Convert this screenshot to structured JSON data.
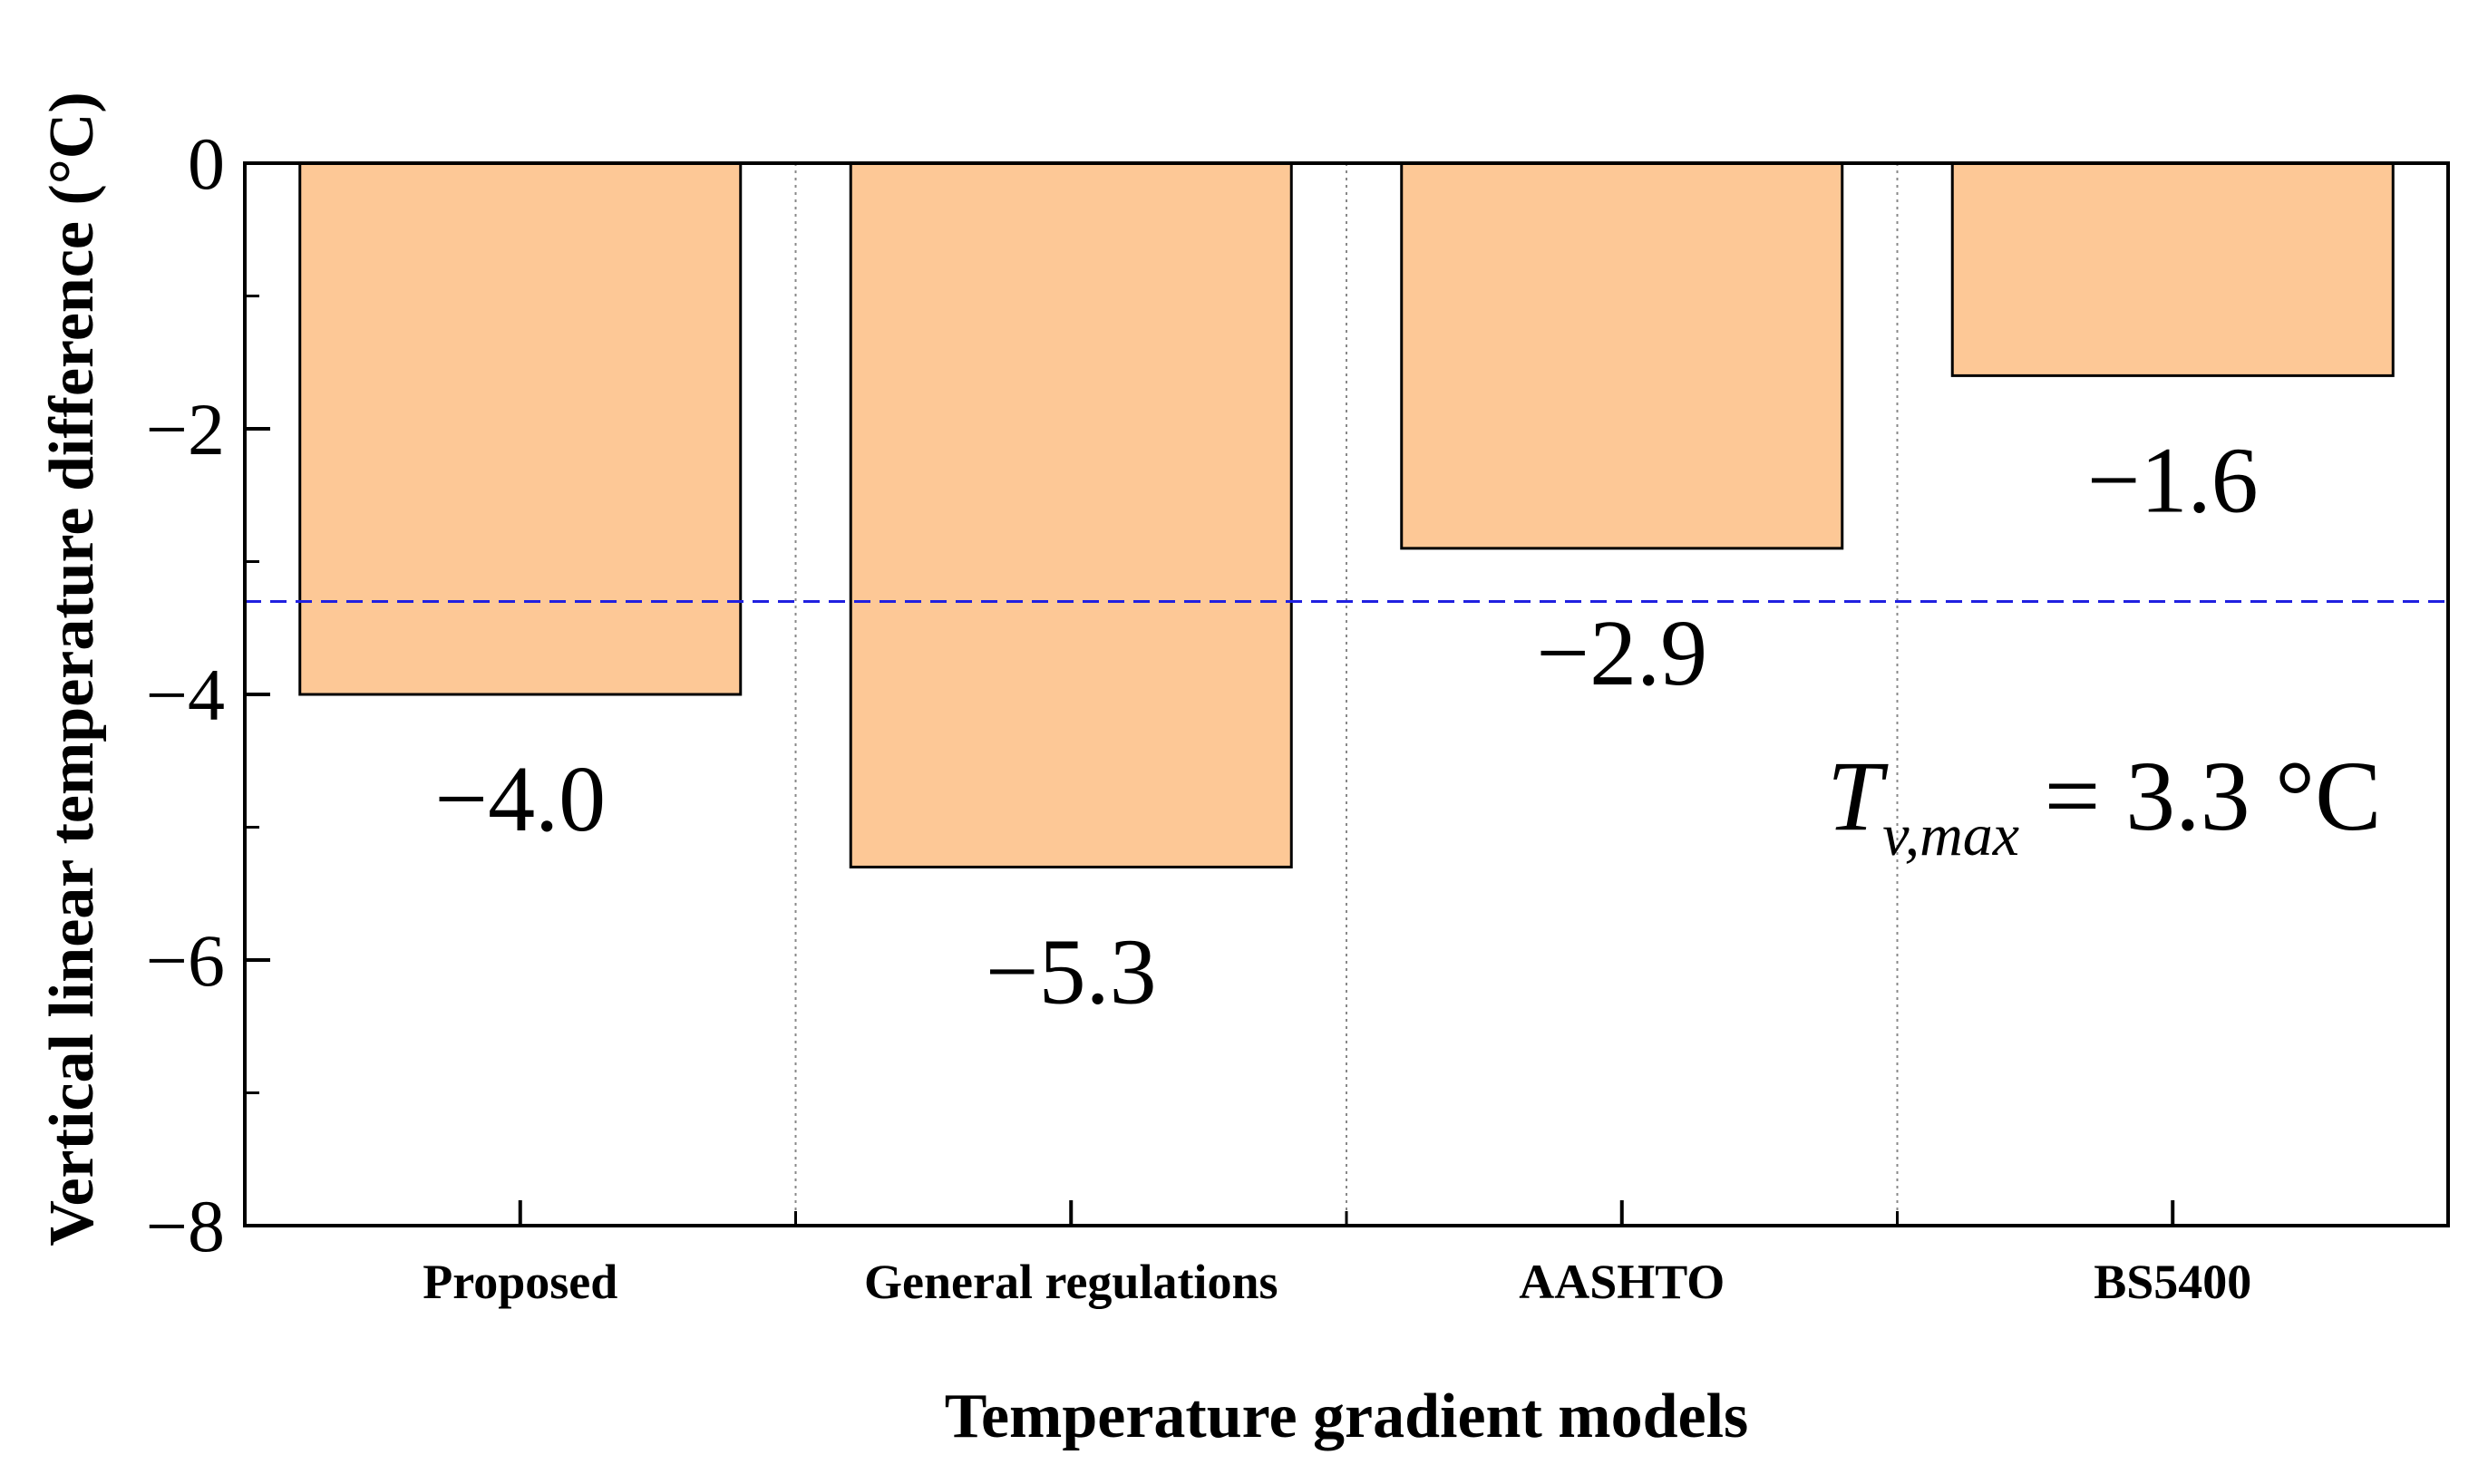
{
  "chart_data": {
    "type": "bar",
    "categories": [
      "Proposed",
      "General regulations",
      "AASHTO",
      "BS5400"
    ],
    "values": [
      -4.0,
      -5.3,
      -2.9,
      -1.6
    ],
    "data_labels": [
      "−4.0",
      "−5.3",
      "−2.9",
      "−1.6"
    ],
    "xlabel": "Temperature gradient models",
    "ylabel": "Vertical linear temperature difference (°C)",
    "ylim": [
      -8,
      0
    ],
    "yticks": [
      0,
      -2,
      -4,
      -6,
      -8
    ],
    "ytick_labels": [
      "0",
      "−2",
      "−4",
      "−6",
      "−8"
    ],
    "reference_line": {
      "value": -3.3,
      "style": "dashed",
      "color": "#2020e0"
    },
    "annotation": {
      "main": "T",
      "subscript": "v,max",
      "rest": " = 3.3 °C"
    },
    "bar_color": "#fdc896",
    "bar_edge_color": "#000000",
    "grid": "vertical dotted separators between categories"
  }
}
